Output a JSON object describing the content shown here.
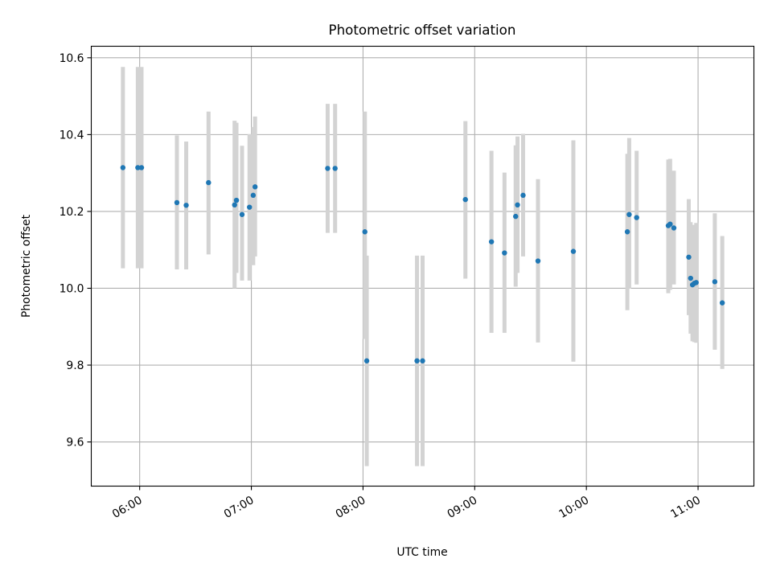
{
  "chart_data": {
    "type": "scatter",
    "title": "Photometric offset variation",
    "xlabel": "UTC time",
    "ylabel": "Photometric offset",
    "xlim": [
      "05:34",
      "11:30"
    ],
    "ylim": [
      9.485,
      10.63
    ],
    "x_ticks": [
      "06:00",
      "07:00",
      "08:00",
      "09:00",
      "10:00",
      "11:00"
    ],
    "y_ticks": [
      9.6,
      9.8,
      10.0,
      10.2,
      10.4,
      10.6
    ],
    "y_tick_labels": [
      "9.6",
      "9.8",
      "10.0",
      "10.2",
      "10.4",
      "10.6"
    ],
    "grid": true,
    "colors": {
      "points": "#1f77b4",
      "error_bars": "#d3d3d3",
      "grid": "#b0b0b0"
    },
    "series": [
      {
        "points": [
          {
            "x": "05:51",
            "y": 10.314,
            "ylo": 10.052,
            "yhi": 10.576
          },
          {
            "x": "05:59",
            "y": 10.314,
            "ylo": 10.052,
            "yhi": 10.576
          },
          {
            "x": "06:01",
            "y": 10.314,
            "ylo": 10.052,
            "yhi": 10.576
          },
          {
            "x": "06:20",
            "y": 10.223,
            "ylo": 10.049,
            "yhi": 10.398
          },
          {
            "x": "06:25",
            "y": 10.216,
            "ylo": 10.049,
            "yhi": 10.382
          },
          {
            "x": "06:37",
            "y": 10.275,
            "ylo": 10.088,
            "yhi": 10.46
          },
          {
            "x": "06:51",
            "y": 10.217,
            "ylo": 10.0,
            "yhi": 10.436
          },
          {
            "x": "06:52",
            "y": 10.229,
            "ylo": 10.04,
            "yhi": 10.431
          },
          {
            "x": "06:55",
            "y": 10.192,
            "ylo": 10.02,
            "yhi": 10.371
          },
          {
            "x": "06:59",
            "y": 10.211,
            "ylo": 10.02,
            "yhi": 10.401
          },
          {
            "x": "07:01",
            "y": 10.242,
            "ylo": 10.06,
            "yhi": 10.42
          },
          {
            "x": "07:02",
            "y": 10.264,
            "ylo": 10.083,
            "yhi": 10.447
          },
          {
            "x": "07:41",
            "y": 10.312,
            "ylo": 10.144,
            "yhi": 10.48
          },
          {
            "x": "07:45",
            "y": 10.312,
            "ylo": 10.144,
            "yhi": 10.48
          },
          {
            "x": "08:01",
            "y": 10.147,
            "ylo": 9.868,
            "yhi": 10.46
          },
          {
            "x": "08:02",
            "y": 9.811,
            "ylo": 9.537,
            "yhi": 10.085
          },
          {
            "x": "08:29",
            "y": 9.811,
            "ylo": 9.537,
            "yhi": 10.085
          },
          {
            "x": "08:32",
            "y": 9.811,
            "ylo": 9.537,
            "yhi": 10.085
          },
          {
            "x": "08:55",
            "y": 10.231,
            "ylo": 10.025,
            "yhi": 10.435
          },
          {
            "x": "09:09",
            "y": 10.121,
            "ylo": 9.884,
            "yhi": 10.358
          },
          {
            "x": "09:16",
            "y": 10.092,
            "ylo": 9.884,
            "yhi": 10.301
          },
          {
            "x": "09:22",
            "y": 10.187,
            "ylo": 10.004,
            "yhi": 10.372
          },
          {
            "x": "09:23",
            "y": 10.217,
            "ylo": 10.04,
            "yhi": 10.395
          },
          {
            "x": "09:26",
            "y": 10.242,
            "ylo": 10.083,
            "yhi": 10.402
          },
          {
            "x": "09:34",
            "y": 10.071,
            "ylo": 9.859,
            "yhi": 10.284
          },
          {
            "x": "09:53",
            "y": 10.096,
            "ylo": 9.809,
            "yhi": 10.385
          },
          {
            "x": "10:22",
            "y": 10.147,
            "ylo": 9.943,
            "yhi": 10.35
          },
          {
            "x": "10:23",
            "y": 10.192,
            "ylo": 9.999,
            "yhi": 10.391
          },
          {
            "x": "10:27",
            "y": 10.184,
            "ylo": 10.01,
            "yhi": 10.358
          },
          {
            "x": "10:44",
            "y": 10.163,
            "ylo": 9.987,
            "yhi": 10.335
          },
          {
            "x": "10:45",
            "y": 10.167,
            "ylo": 9.996,
            "yhi": 10.337
          },
          {
            "x": "10:47",
            "y": 10.157,
            "ylo": 10.01,
            "yhi": 10.306
          },
          {
            "x": "10:55",
            "y": 10.081,
            "ylo": 9.93,
            "yhi": 10.232
          },
          {
            "x": "10:56",
            "y": 10.026,
            "ylo": 9.882,
            "yhi": 10.172
          },
          {
            "x": "10:57",
            "y": 10.009,
            "ylo": 9.862,
            "yhi": 10.154
          },
          {
            "x": "10:58",
            "y": 10.013,
            "ylo": 9.86,
            "yhi": 10.165
          },
          {
            "x": "10:59",
            "y": 10.015,
            "ylo": 9.858,
            "yhi": 10.17
          },
          {
            "x": "11:09",
            "y": 10.017,
            "ylo": 9.84,
            "yhi": 10.195
          },
          {
            "x": "11:13",
            "y": 9.962,
            "ylo": 9.79,
            "yhi": 10.136
          }
        ]
      }
    ]
  }
}
